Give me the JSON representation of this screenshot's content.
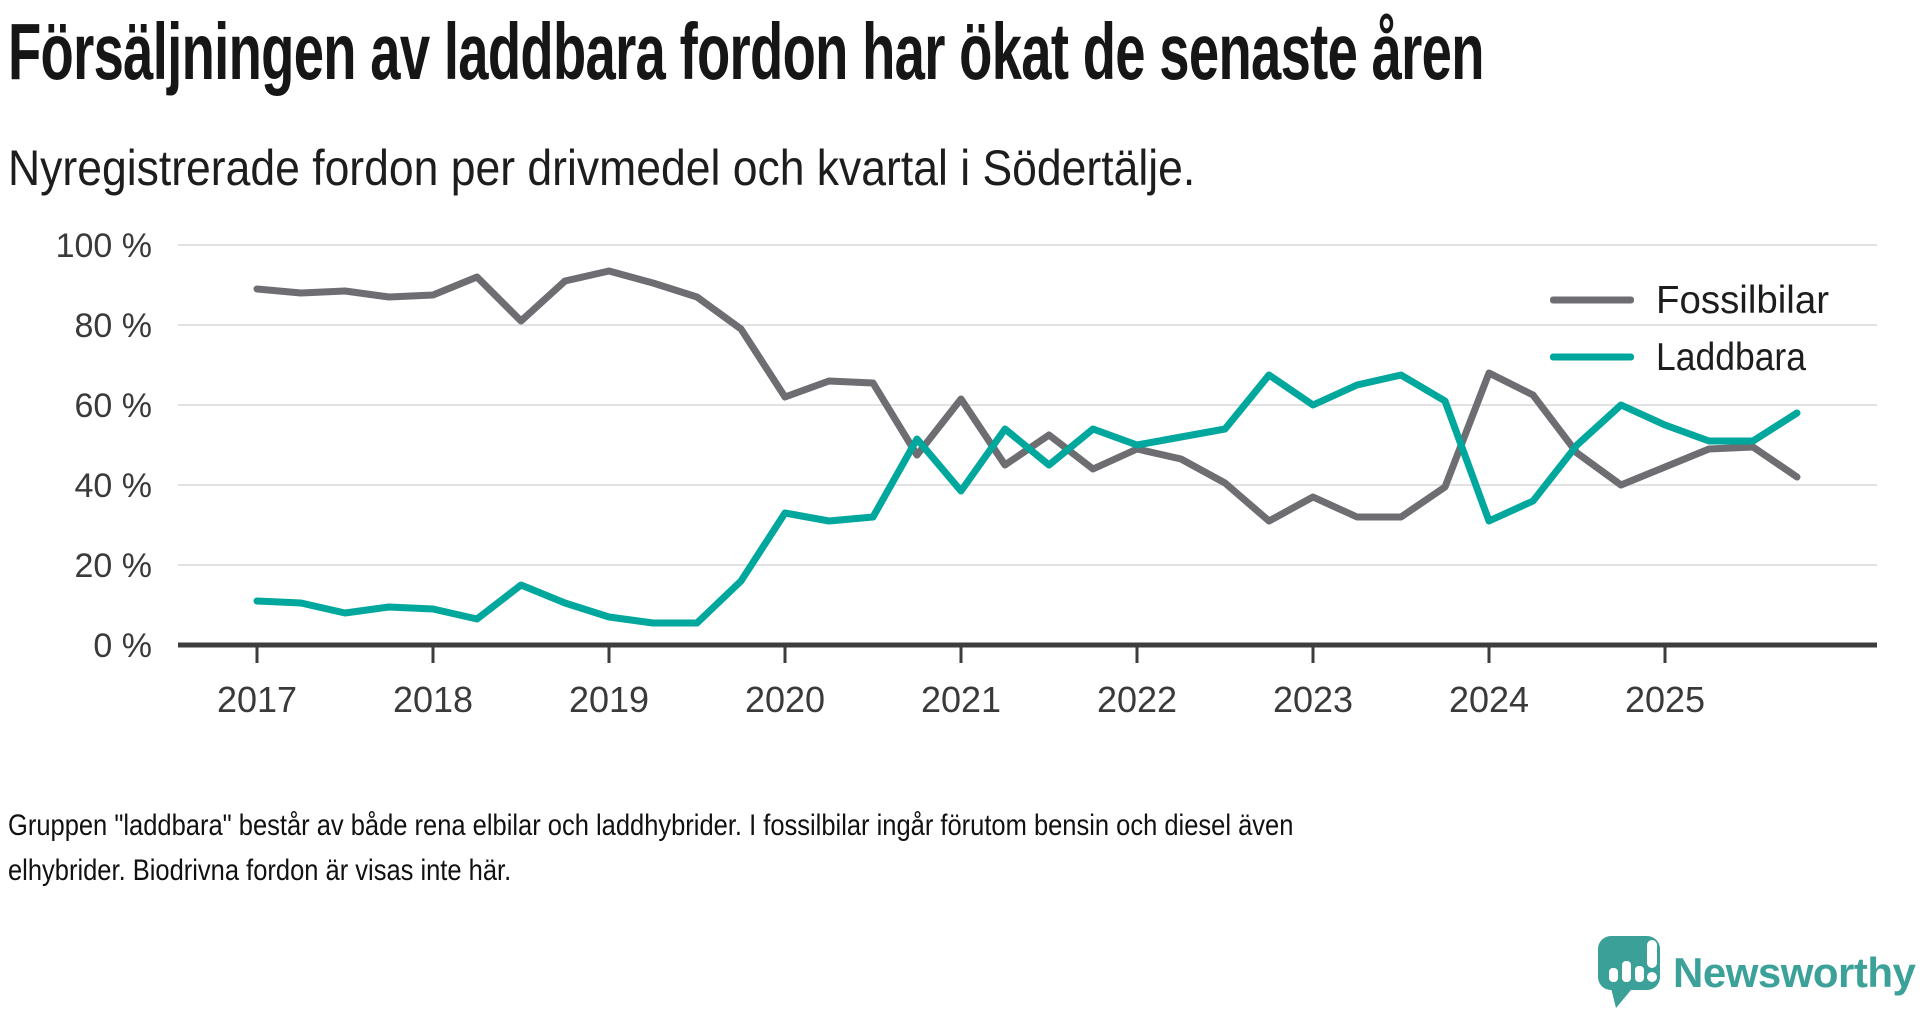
{
  "title": "Försäljningen av laddbara fordon har ökat de senaste åren",
  "subtitle": "Nyregistrerade fordon per drivmedel och kvartal i Södertälje.",
  "footnote": {
    "lines": [
      "Gruppen \"laddbara\" består av både rena elbilar och laddhybrider. I fossilbilar ingår förutom bensin och diesel även",
      "elhybrider. Biodrivna fordon är visas inte här."
    ]
  },
  "logo": {
    "text": "Newsworthy",
    "color": "#3ba199"
  },
  "chart_data": {
    "type": "line",
    "title": "Försäljningen av laddbara fordon har ökat de senaste åren",
    "subtitle": "Nyregistrerade fordon per drivmedel och kvartal i Södertälje.",
    "x_unit": "quarter",
    "x_start_year": 2017,
    "x_end": "2025 Q4",
    "points_per_year": 4,
    "ylim": [
      0,
      100
    ],
    "grid": "horizontal",
    "legend_position": "top-right",
    "y_axis": {
      "ticks": [
        {
          "value": 100,
          "label": "100 %"
        },
        {
          "value": 80,
          "label": "80 %"
        },
        {
          "value": 60,
          "label": "60 %"
        },
        {
          "value": 40,
          "label": "40 %"
        },
        {
          "value": 20,
          "label": "20 %"
        },
        {
          "value": 0,
          "label": "0 %"
        }
      ]
    },
    "x_axis": {
      "tick_labels": [
        "2017",
        "2018",
        "2019",
        "2020",
        "2021",
        "2022",
        "2023",
        "2024",
        "2025"
      ]
    },
    "series": [
      {
        "name": "Fossilbilar",
        "color": "#6d6d72",
        "values": [
          89,
          88,
          88.5,
          87,
          87.5,
          92,
          81,
          91,
          93.5,
          90.5,
          87,
          79,
          62,
          66,
          65.5,
          47.5,
          61.5,
          45,
          52.5,
          44,
          49,
          46.5,
          40.5,
          31,
          37,
          32,
          32,
          39.5,
          68,
          62.5,
          48,
          40,
          44.5,
          49,
          49.5,
          42
        ]
      },
      {
        "name": "Laddbara",
        "color": "#00a79c",
        "values": [
          11,
          10.5,
          8,
          9.5,
          9,
          6.5,
          15,
          10.5,
          7,
          5.5,
          5.5,
          16,
          33,
          31,
          32,
          51.5,
          38.5,
          54,
          45,
          54,
          50,
          52,
          54,
          67.5,
          60,
          65,
          67.5,
          61,
          31,
          36,
          50,
          60,
          55,
          51,
          51,
          58
        ]
      }
    ]
  }
}
